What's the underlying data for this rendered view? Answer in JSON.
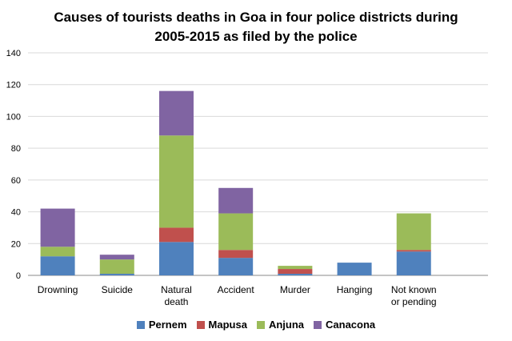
{
  "chart_data": {
    "type": "bar",
    "stacked": true,
    "title_line1": "Causes of tourists deaths in Goa in four police districts during",
    "title_line2": "2005-2015 as filed by the police",
    "categories": [
      [
        "Drowning"
      ],
      [
        "Suicide"
      ],
      [
        "Natural",
        "death"
      ],
      [
        "Accident"
      ],
      [
        "Murder"
      ],
      [
        "Hanging"
      ],
      [
        "Not known",
        "or pending"
      ]
    ],
    "series": [
      {
        "name": "Pernem",
        "color": "#4f81bd",
        "values": [
          12,
          1,
          21,
          11,
          1,
          8,
          15
        ]
      },
      {
        "name": "Mapusa",
        "color": "#c0504d",
        "values": [
          0,
          0,
          9,
          5,
          3,
          0,
          1
        ]
      },
      {
        "name": "Anjuna",
        "color": "#9bbb59",
        "values": [
          6,
          9,
          58,
          23,
          2,
          0,
          23
        ]
      },
      {
        "name": "Canacona",
        "color": "#8064a2",
        "values": [
          24,
          3,
          28,
          16,
          0,
          0,
          0
        ]
      }
    ],
    "yticks": [
      "0",
      "20",
      "40",
      "60",
      "80",
      "100",
      "120",
      "140"
    ],
    "ylim": [
      0,
      140
    ],
    "grid": true,
    "legend_position": "bottom"
  }
}
